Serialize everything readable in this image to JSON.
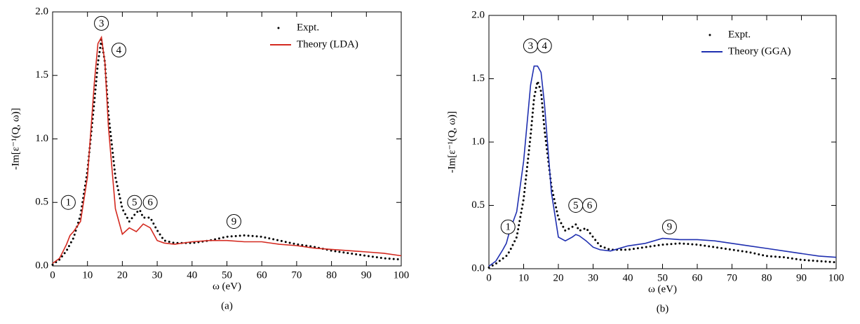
{
  "chart_data": [
    {
      "type": "line",
      "x_label": "ω (eV)",
      "y_label": "-Im[ε⁻¹(Q, ω)]",
      "caption": "(a)",
      "xlim": [
        0,
        100
      ],
      "ylim": [
        0,
        2
      ],
      "xticks": [
        0,
        10,
        20,
        30,
        40,
        50,
        60,
        70,
        80,
        90,
        100
      ],
      "yticks": [
        {
          "value": 0,
          "label": "0.0"
        },
        {
          "value": 0.5,
          "label": "0.5"
        },
        {
          "value": 1,
          "label": "1.0"
        },
        {
          "value": 1.5,
          "label": "1.5"
        },
        {
          "value": 2,
          "label": "2.0"
        }
      ],
      "legend": "upper right",
      "annotations": [
        "1",
        "3",
        "4",
        "5",
        "6",
        "9"
      ],
      "x": [
        0,
        2,
        4,
        5,
        6,
        8,
        10,
        12,
        13,
        14,
        15,
        16,
        18,
        20,
        22,
        24,
        25,
        26,
        28,
        30,
        32,
        35,
        40,
        45,
        50,
        55,
        60,
        65,
        70,
        75,
        80,
        85,
        90,
        95,
        100
      ],
      "series": [
        {
          "name": "Expt.",
          "color": "#000000",
          "linestyle": "dotted",
          "values": [
            0.01,
            0.05,
            0.12,
            0.17,
            0.22,
            0.4,
            0.75,
            1.3,
            1.6,
            1.78,
            1.6,
            1.2,
            0.7,
            0.45,
            0.35,
            0.42,
            0.44,
            0.38,
            0.38,
            0.28,
            0.2,
            0.18,
            0.18,
            0.2,
            0.23,
            0.24,
            0.23,
            0.2,
            0.17,
            0.15,
            0.12,
            0.1,
            0.08,
            0.06,
            0.05
          ]
        },
        {
          "name": "Theory (LDA)",
          "color": "#d42a20",
          "linestyle": "solid",
          "values": [
            0.02,
            0.06,
            0.17,
            0.24,
            0.27,
            0.35,
            0.7,
            1.45,
            1.75,
            1.8,
            1.6,
            1.1,
            0.45,
            0.25,
            0.3,
            0.27,
            0.3,
            0.33,
            0.3,
            0.2,
            0.18,
            0.17,
            0.19,
            0.2,
            0.2,
            0.19,
            0.19,
            0.17,
            0.16,
            0.14,
            0.13,
            0.12,
            0.11,
            0.1,
            0.08
          ]
        }
      ]
    },
    {
      "type": "line",
      "x_label": "ω (eV)",
      "y_label": "-Im[ε⁻¹(Q, ω)]",
      "caption": "(b)",
      "xlim": [
        0,
        100
      ],
      "ylim": [
        0,
        2
      ],
      "xticks": [
        0,
        10,
        20,
        30,
        40,
        50,
        60,
        70,
        80,
        90,
        100
      ],
      "yticks": [
        {
          "value": 0,
          "label": "0.0"
        },
        {
          "value": 0.5,
          "label": "0.5"
        },
        {
          "value": 1,
          "label": "1.0"
        },
        {
          "value": 1.5,
          "label": "1.5"
        },
        {
          "value": 2,
          "label": "2.0"
        }
      ],
      "legend": "upper right",
      "annotations": [
        "1",
        "3",
        "4",
        "5",
        "6",
        "9"
      ],
      "x": [
        0,
        2,
        4,
        5,
        6,
        8,
        10,
        12,
        13,
        14,
        15,
        16,
        18,
        20,
        22,
        24,
        25,
        26,
        28,
        30,
        32,
        35,
        40,
        45,
        50,
        55,
        60,
        65,
        70,
        75,
        80,
        85,
        90,
        95,
        100
      ],
      "series": [
        {
          "name": "Expt.",
          "color": "#000000",
          "linestyle": "dotted",
          "values": [
            0.01,
            0.04,
            0.08,
            0.1,
            0.14,
            0.25,
            0.55,
            1.05,
            1.35,
            1.48,
            1.4,
            1.1,
            0.65,
            0.4,
            0.3,
            0.33,
            0.35,
            0.3,
            0.32,
            0.25,
            0.18,
            0.15,
            0.15,
            0.17,
            0.19,
            0.2,
            0.19,
            0.17,
            0.15,
            0.13,
            0.1,
            0.09,
            0.07,
            0.06,
            0.05
          ]
        },
        {
          "name": "Theory (GGA)",
          "color": "#1f2fb0",
          "linestyle": "solid",
          "values": [
            0.02,
            0.06,
            0.15,
            0.2,
            0.3,
            0.45,
            0.85,
            1.45,
            1.6,
            1.6,
            1.55,
            1.3,
            0.6,
            0.25,
            0.22,
            0.25,
            0.27,
            0.26,
            0.22,
            0.17,
            0.15,
            0.14,
            0.18,
            0.2,
            0.24,
            0.23,
            0.23,
            0.22,
            0.2,
            0.18,
            0.16,
            0.14,
            0.12,
            0.1,
            0.09
          ]
        }
      ]
    }
  ]
}
